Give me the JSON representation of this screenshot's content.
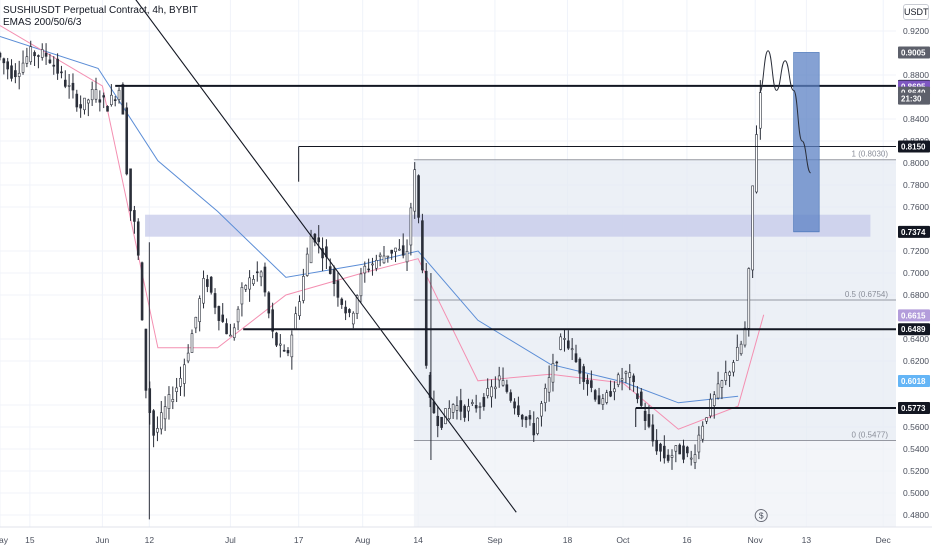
{
  "header": {
    "title": "SUSHIUSDT Perpetual Contract, 4h, BYBIT",
    "indicator": "EMAS 200/50/6/3",
    "unit": "USDT"
  },
  "chart_data": {
    "type": "candlestick",
    "symbol": "SUSHIUSDT",
    "exchange": "BYBIT",
    "timeframe": "4h",
    "ylim": [
      0.47,
      0.925
    ],
    "xlim": [
      "2023-05-08",
      "2023-12-04"
    ],
    "y_ticks": [
      "0.9200",
      "0.8800",
      "0.8400",
      "0.8200",
      "0.8000",
      "0.7800",
      "0.7600",
      "0.7200",
      "0.7000",
      "0.6800",
      "0.6400",
      "0.6200",
      "0.5800",
      "0.5600",
      "0.5400",
      "0.5200",
      "0.5000",
      "0.4800"
    ],
    "x_ticks": [
      {
        "label": "May",
        "date": "2023-05-08"
      },
      {
        "label": "15",
        "date": "2023-05-15"
      },
      {
        "label": "Jun",
        "date": "2023-06-01"
      },
      {
        "label": "12",
        "date": "2023-06-12"
      },
      {
        "label": "Jul",
        "date": "2023-07-01"
      },
      {
        "label": "17",
        "date": "2023-07-17"
      },
      {
        "label": "Aug",
        "date": "2023-08-01"
      },
      {
        "label": "14",
        "date": "2023-08-14"
      },
      {
        "label": "Sep",
        "date": "2023-09-01"
      },
      {
        "label": "18",
        "date": "2023-09-18"
      },
      {
        "label": "Oct",
        "date": "2023-10-01"
      },
      {
        "label": "16",
        "date": "2023-10-16"
      },
      {
        "label": "Nov",
        "date": "2023-11-01"
      },
      {
        "label": "13",
        "date": "2023-11-13"
      },
      {
        "label": "Dec",
        "date": "2023-12-01"
      }
    ],
    "price_tags": [
      {
        "label": "0.9005",
        "value": 0.9005,
        "color": "#5d606b"
      },
      {
        "label": "0.8701",
        "value": 0.8701,
        "color": "#131722"
      },
      {
        "label": "0.8695",
        "value": 0.8695,
        "color": "#7e57c2"
      },
      {
        "label": "0.8640",
        "value": 0.864,
        "color": "#5d606b"
      },
      {
        "label": "21:30",
        "value": 0.8585,
        "color": "#5d606b"
      },
      {
        "label": "0.8150",
        "value": 0.815,
        "color": "#131722"
      },
      {
        "label": "0.7374",
        "value": 0.7374,
        "color": "#131722"
      },
      {
        "label": "0.6615",
        "value": 0.6615,
        "color": "#b39ddb"
      },
      {
        "label": "0.6489",
        "value": 0.6489,
        "color": "#131722"
      },
      {
        "label": "0.6018",
        "value": 0.6018,
        "color": "#64b5f6"
      },
      {
        "label": "0.5773",
        "value": 0.5773,
        "color": "#131722"
      }
    ],
    "fib_levels": [
      {
        "label": "1 (0.8030)",
        "value": 0.803
      },
      {
        "label": "0.5 (0.6754)",
        "value": 0.6754
      },
      {
        "label": "0 (0.5477)",
        "value": 0.5477
      }
    ],
    "fib_range": {
      "start": "2023-08-13",
      "end": "2023-12-04"
    },
    "horizontal_lines": [
      {
        "value": 0.8701,
        "start": "2023-06-04",
        "end": "2023-12-04",
        "weight": 2
      },
      {
        "value": 0.815,
        "start": "2023-07-17",
        "end": "2023-12-04",
        "weight": 1
      },
      {
        "value": 0.6489,
        "start": "2023-07-04",
        "end": "2023-12-04",
        "weight": 2
      },
      {
        "value": 0.5773,
        "start": "2023-10-04",
        "end": "2023-12-04",
        "weight": 2
      }
    ],
    "zone": {
      "start": "2023-06-11",
      "end": "2023-11-28",
      "low": 0.733,
      "high": 0.753,
      "color": "#c5cae9"
    },
    "trendline": {
      "start": {
        "date": "2023-06-07",
        "value": 0.958
      },
      "end": {
        "date": "2023-09-06",
        "value": 0.4825
      }
    },
    "projection_box": {
      "start": "2023-11-10",
      "end": "2023-11-16",
      "low": 0.7374,
      "high": 0.9005,
      "color": "#5c82c4"
    },
    "projection_path": [
      [
        "2023-11-02",
        0.864
      ],
      [
        "2023-11-04",
        0.902
      ],
      [
        "2023-11-06",
        0.866
      ],
      [
        "2023-11-08",
        0.893
      ],
      [
        "2023-11-10",
        0.866
      ],
      [
        "2023-11-12",
        0.82
      ],
      [
        "2023-11-14",
        0.791
      ]
    ],
    "ema_series": [
      {
        "color": "#5b8dd6",
        "values": [
          [
            "2023-05-08",
            0.915
          ],
          [
            "2023-05-31",
            0.886
          ],
          [
            "2023-06-14",
            0.802
          ],
          [
            "2023-06-28",
            0.756
          ],
          [
            "2023-07-14",
            0.696
          ],
          [
            "2023-08-01",
            0.708
          ],
          [
            "2023-08-14",
            0.72
          ],
          [
            "2023-08-28",
            0.657
          ],
          [
            "2023-09-14",
            0.617
          ],
          [
            "2023-10-01",
            0.601
          ],
          [
            "2023-10-14",
            0.582
          ],
          [
            "2023-10-28",
            0.588
          ]
        ]
      },
      {
        "color": "#f48fb1",
        "values": [
          [
            "2023-05-08",
            0.925
          ],
          [
            "2023-06-01",
            0.87
          ],
          [
            "2023-06-14",
            0.632
          ],
          [
            "2023-06-28",
            0.632
          ],
          [
            "2023-07-14",
            0.68
          ],
          [
            "2023-08-01",
            0.7
          ],
          [
            "2023-08-14",
            0.713
          ],
          [
            "2023-08-28",
            0.602
          ],
          [
            "2023-09-14",
            0.608
          ],
          [
            "2023-10-01",
            0.6
          ],
          [
            "2023-10-14",
            0.558
          ],
          [
            "2023-10-28",
            0.579
          ],
          [
            "2023-11-03",
            0.662
          ]
        ]
      }
    ],
    "price_path": [
      [
        "2023-05-08",
        0.9
      ],
      [
        "2023-05-12",
        0.88
      ],
      [
        "2023-05-16",
        0.9
      ],
      [
        "2023-05-20",
        0.898
      ],
      [
        "2023-05-24",
        0.874
      ],
      [
        "2023-05-28",
        0.85
      ],
      [
        "2023-05-31",
        0.865
      ],
      [
        "2023-06-03",
        0.852
      ],
      [
        "2023-06-06",
        0.869
      ],
      [
        "2023-06-07",
        0.84
      ],
      [
        "2023-06-08",
        0.765
      ],
      [
        "2023-06-10",
        0.735
      ],
      [
        "2023-06-12",
        0.598
      ],
      [
        "2023-06-14",
        0.551
      ],
      [
        "2023-06-17",
        0.58
      ],
      [
        "2023-06-20",
        0.602
      ],
      [
        "2023-06-23",
        0.646
      ],
      [
        "2023-06-26",
        0.697
      ],
      [
        "2023-06-29",
        0.664
      ],
      [
        "2023-07-02",
        0.64
      ],
      [
        "2023-07-05",
        0.688
      ],
      [
        "2023-07-09",
        0.702
      ],
      [
        "2023-07-12",
        0.64
      ],
      [
        "2023-07-15",
        0.622
      ],
      [
        "2023-07-18",
        0.676
      ],
      [
        "2023-07-21",
        0.738
      ],
      [
        "2023-07-24",
        0.716
      ],
      [
        "2023-07-27",
        0.683
      ],
      [
        "2023-07-30",
        0.657
      ],
      [
        "2023-08-02",
        0.703
      ],
      [
        "2023-08-06",
        0.714
      ],
      [
        "2023-08-10",
        0.723
      ],
      [
        "2023-08-12",
        0.708
      ],
      [
        "2023-08-14",
        0.795
      ],
      [
        "2023-08-16",
        0.703
      ],
      [
        "2023-08-17",
        0.587
      ],
      [
        "2023-08-20",
        0.563
      ],
      [
        "2023-08-23",
        0.581
      ],
      [
        "2023-08-26",
        0.574
      ],
      [
        "2023-08-30",
        0.583
      ],
      [
        "2023-09-03",
        0.604
      ],
      [
        "2023-09-07",
        0.578
      ],
      [
        "2023-09-11",
        0.557
      ],
      [
        "2023-09-15",
        0.607
      ],
      [
        "2023-09-18",
        0.645
      ],
      [
        "2023-09-21",
        0.618
      ],
      [
        "2023-09-24",
        0.599
      ],
      [
        "2023-09-27",
        0.579
      ],
      [
        "2023-09-30",
        0.6
      ],
      [
        "2023-10-03",
        0.609
      ],
      [
        "2023-10-06",
        0.581
      ],
      [
        "2023-10-09",
        0.546
      ],
      [
        "2023-10-12",
        0.531
      ],
      [
        "2023-10-15",
        0.54
      ],
      [
        "2023-10-18",
        0.53
      ],
      [
        "2023-10-21",
        0.569
      ],
      [
        "2023-10-24",
        0.592
      ],
      [
        "2023-10-27",
        0.614
      ],
      [
        "2023-10-30",
        0.638
      ],
      [
        "2023-10-31",
        0.658
      ],
      [
        "2023-11-01",
        0.76
      ],
      [
        "2023-11-02",
        0.82
      ],
      [
        "2023-11-03",
        0.864
      ]
    ]
  }
}
